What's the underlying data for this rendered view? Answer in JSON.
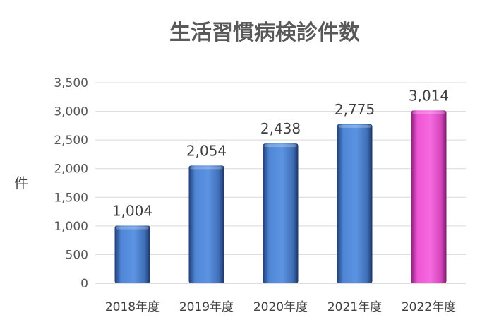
{
  "chart_data": {
    "type": "bar",
    "title": "生活習慣病検診件数",
    "xlabel": "",
    "ylabel": "件",
    "categories": [
      "2018年度",
      "2019年度",
      "2020年度",
      "2021年度",
      "2022年度"
    ],
    "values": [
      1004,
      2054,
      2438,
      2775,
      3014
    ],
    "value_labels": [
      "1,004",
      "2,054",
      "2,438",
      "2,775",
      "3,014"
    ],
    "ylim": [
      0,
      3500
    ],
    "yticks": [
      0,
      500,
      1000,
      1500,
      2000,
      2500,
      3000,
      3500
    ],
    "ytick_labels": [
      "0",
      "500",
      "1,000",
      "1,500",
      "2,000",
      "2,500",
      "3,000",
      "3,500"
    ],
    "grid": true,
    "colors": {
      "default": "#4f86d6",
      "highlight": "#f25ad6",
      "highlight_index": 4
    }
  }
}
